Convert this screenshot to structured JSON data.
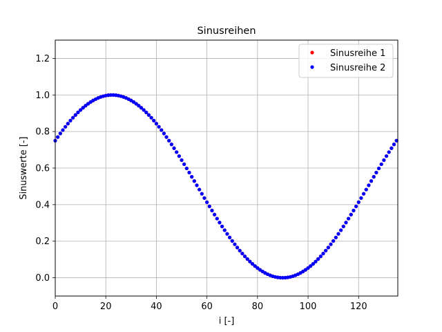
{
  "chart_data": {
    "type": "scatter",
    "title": "Sinusreihen",
    "xlabel": "i [-]",
    "ylabel": "Sinuswerte [-]",
    "xlim": [
      0,
      135.5
    ],
    "ylim": [
      -0.1,
      1.3
    ],
    "xticks": [
      "0",
      "20",
      "40",
      "60",
      "80",
      "100",
      "120"
    ],
    "yticks": [
      "0.0",
      "0.2",
      "0.4",
      "0.6",
      "0.8",
      "1.0",
      "1.2"
    ],
    "grid": true,
    "legend_position": "top-right",
    "series": [
      {
        "name": "Sinusreihe 1",
        "color": "#ff0000",
        "generator": "0.5 + 0.5*sin(2*pi*i/135 + pi/6), i = 0..135"
      },
      {
        "name": "Sinusreihe 2",
        "color": "#0000ff",
        "generator": "0.5 + 0.5*sin(2*pi*i/135 + pi/6), i = 0..135"
      }
    ]
  }
}
